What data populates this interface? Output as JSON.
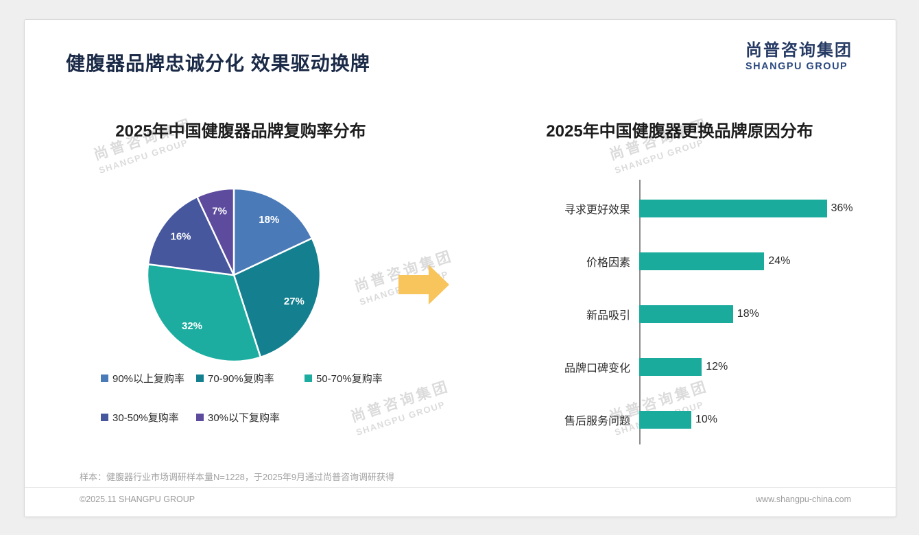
{
  "page": {
    "title": "健腹器品牌忠诚分化 效果驱动换牌",
    "logo": {
      "cn": "尚普咨询集团",
      "en": "SHANGPU GROUP"
    },
    "watermark": {
      "cn": "尚普咨询集团",
      "en": "SHANGPU GROUP"
    },
    "footnote": "样本：健腹器行业市场调研样本量N=1228，于2025年9月通过尚普咨询调研获得",
    "footer_left": "©2025.11 SHANGPU GROUP",
    "footer_right": "www.shangpu-china.com"
  },
  "colors": {
    "background": "#efefef",
    "card": "#ffffff",
    "title_navy": "#1b2a47",
    "arrow": "#f8c45c",
    "axis": "#8c8c8c",
    "bar_teal": "#1aab9c"
  },
  "chart_data": [
    {
      "type": "pie",
      "title": "2025年中国健腹器品牌复购率分布",
      "labels": [
        "90%以上复购率",
        "70-90%复购率",
        "50-70%复购率",
        "30-50%复购率",
        "30%以下复购率"
      ],
      "values": [
        18,
        27,
        32,
        16,
        7
      ],
      "value_labels": [
        "18%",
        "27%",
        "32%",
        "16%",
        "7%"
      ],
      "colors": [
        "#4a7ab8",
        "#14808f",
        "#1cada0",
        "#46579e",
        "#5d4b9e"
      ],
      "start_angle_deg": -90,
      "direction": "clockwise",
      "legend_position": "bottom"
    },
    {
      "type": "bar",
      "orientation": "horizontal",
      "title": "2025年中国健腹器更换品牌原因分布",
      "categories": [
        "寻求更好效果",
        "价格因素",
        "新品吸引",
        "品牌口碑变化",
        "售后服务问题"
      ],
      "values": [
        36,
        24,
        18,
        12,
        10
      ],
      "value_labels": [
        "36%",
        "24%",
        "18%",
        "12%",
        "10%"
      ],
      "bar_color": "#1aab9c",
      "xlim": [
        0,
        40
      ]
    }
  ]
}
